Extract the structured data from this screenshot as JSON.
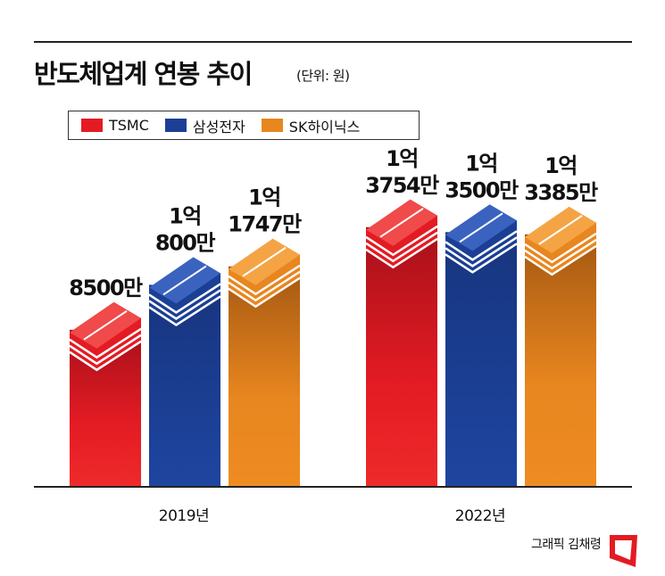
{
  "chart_data": {
    "type": "bar",
    "title": "반도체업계 연봉 추이",
    "unit": "(단위: 원)",
    "categories": [
      "2019년",
      "2022년"
    ],
    "series": [
      {
        "name": "TSMC",
        "color": "#e31b23",
        "values": [
          85000000,
          137540000
        ],
        "labels": [
          [
            "8500만"
          ],
          [
            "1억",
            "3754만"
          ]
        ]
      },
      {
        "name": "삼성전자",
        "color": "#1b3f94",
        "values": [
          108000000,
          135000000
        ],
        "labels": [
          [
            "1억",
            "800만"
          ],
          [
            "1억",
            "3500만"
          ]
        ]
      },
      {
        "name": "SK하이닉스",
        "color": "#e8861f",
        "values": [
          117470000,
          133850000
        ],
        "labels": [
          [
            "1억",
            "1747만"
          ],
          [
            "1억",
            "3385만"
          ]
        ]
      }
    ],
    "legend_position": "top-left",
    "grid": false
  },
  "credit": "그래픽 김채령"
}
